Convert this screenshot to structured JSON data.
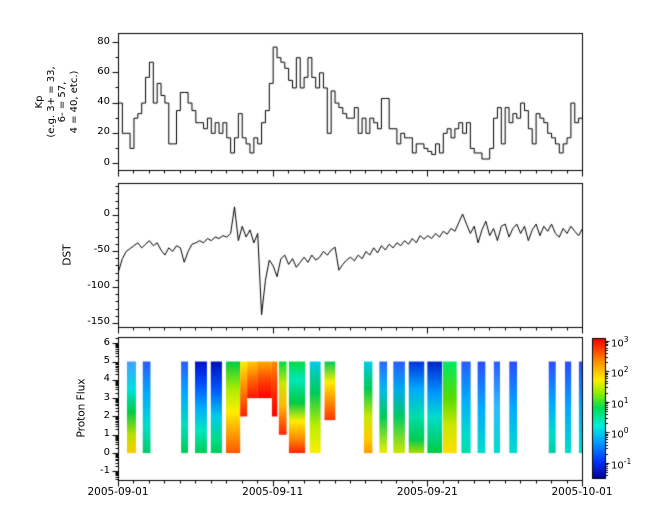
{
  "figure": {
    "background": "#ffffff",
    "axis_color": "#000000",
    "x_axis": {
      "range_days": [
        0,
        30
      ],
      "major_tick_days": [
        0,
        10,
        20,
        30
      ],
      "major_tick_labels": [
        "2005-09-01",
        "2005-09-11",
        "2005-09-21",
        "2005-10-01"
      ],
      "minor_tick_step_days": 1
    }
  },
  "chart_data": [
    {
      "id": "kp",
      "type": "line",
      "style": "step",
      "ylabel_lines": [
        "Kp",
        "(e.g. 3+ = 33,",
        "6- = 57,",
        "4 = 40, etc.)"
      ],
      "line_color": "#000000",
      "ylim": [
        -4.6,
        86
      ],
      "yticks": [
        0,
        20,
        40,
        60,
        80
      ],
      "ytick_labels": [
        "0",
        "20",
        "40",
        "60",
        "80"
      ],
      "y_minor_ticks": [
        10,
        30,
        50,
        70
      ],
      "x_start_day": 0,
      "x_step_days": 0.25,
      "values": [
        40,
        20,
        20,
        10,
        30,
        33,
        40,
        57,
        67,
        40,
        53,
        45,
        40,
        13,
        13,
        35,
        47,
        47,
        40,
        35,
        27,
        27,
        23,
        30,
        20,
        27,
        20,
        27,
        17,
        7,
        17,
        33,
        17,
        13,
        7,
        17,
        13,
        27,
        35,
        53,
        77,
        70,
        67,
        63,
        55,
        50,
        70,
        50,
        57,
        70,
        57,
        50,
        60,
        50,
        20,
        48,
        40,
        37,
        33,
        30,
        30,
        37,
        20,
        30,
        20,
        30,
        27,
        23,
        43,
        43,
        23,
        23,
        13,
        20,
        17,
        17,
        7,
        13,
        13,
        10,
        8,
        6,
        13,
        7,
        20,
        23,
        17,
        23,
        27,
        20,
        27,
        10,
        7,
        7,
        3,
        3,
        10,
        30,
        37,
        13,
        37,
        27,
        33,
        30,
        40,
        35,
        23,
        13,
        33,
        30,
        27,
        20,
        17,
        13,
        7,
        13,
        17,
        40,
        27,
        30
      ]
    },
    {
      "id": "dst",
      "type": "line",
      "style": "line",
      "ylabel": "DST",
      "line_color": "#000000",
      "ylim": [
        -155.6,
        44.4
      ],
      "yticks": [
        0,
        -50,
        -100,
        -150
      ],
      "ytick_labels": [
        "0",
        "-50",
        "-100",
        "-150"
      ],
      "y_minor_ticks": [
        40,
        30,
        20,
        10,
        -10,
        -20,
        -30,
        -40,
        -60,
        -70,
        -80,
        -90,
        -110,
        -120,
        -130,
        -140
      ],
      "x_start_day": 0,
      "x_step_days": 0.25,
      "values": [
        -78,
        -60,
        -50,
        -46,
        -42,
        -38,
        -45,
        -40,
        -35,
        -42,
        -38,
        -48,
        -55,
        -45,
        -50,
        -42,
        -45,
        -65,
        -50,
        -40,
        -38,
        -35,
        -38,
        -32,
        -35,
        -30,
        -32,
        -28,
        -30,
        -25,
        12,
        -35,
        -15,
        -30,
        -20,
        -38,
        -25,
        -138,
        -90,
        -62,
        -70,
        -85,
        -60,
        -55,
        -68,
        -60,
        -72,
        -65,
        -58,
        -65,
        -55,
        -62,
        -58,
        -50,
        -55,
        -48,
        -44,
        -76,
        -68,
        -62,
        -58,
        -63,
        -55,
        -60,
        -50,
        -55,
        -45,
        -52,
        -42,
        -48,
        -40,
        -45,
        -38,
        -42,
        -35,
        -40,
        -32,
        -38,
        -28,
        -33,
        -28,
        -32,
        -25,
        -30,
        -22,
        -26,
        -18,
        -22,
        -10,
        2,
        -12,
        -25,
        -15,
        -38,
        -20,
        -8,
        -28,
        -18,
        -35,
        -15,
        -12,
        -30,
        -18,
        -12,
        -25,
        -15,
        -35,
        -20,
        -12,
        -28,
        -15,
        -22,
        -12,
        -25,
        -30,
        -18,
        -25,
        -15,
        -22,
        -28,
        -18
      ]
    },
    {
      "id": "proton_flux",
      "type": "heatmap",
      "ylabel": "Proton Flux",
      "ylim": [
        -1.47,
        6.34
      ],
      "yticks": [
        -1,
        0,
        1,
        2,
        3,
        4,
        5,
        6
      ],
      "ytick_labels": [
        "-1",
        "0",
        "1",
        "2",
        "3",
        "4",
        "5",
        "6"
      ],
      "y_scale": "log_decades",
      "stripe_y_top": 5,
      "stripes": [
        {
          "day_start": 0.58,
          "day_end": 1.16,
          "y_bottom": 0,
          "stops": [
            [
              0,
              "#44a0ff"
            ],
            [
              0.3,
              "#00e0e0"
            ],
            [
              0.55,
              "#00cc44"
            ],
            [
              0.8,
              "#bbdd00"
            ],
            [
              1,
              "#ffcc00"
            ]
          ]
        },
        {
          "day_start": 1.6,
          "day_end": 2.1,
          "y_bottom": 0,
          "stops": [
            [
              0,
              "#2a5cff"
            ],
            [
              0.35,
              "#00aaff"
            ],
            [
              0.7,
              "#00ddcc"
            ],
            [
              1,
              "#00cc66"
            ]
          ]
        },
        {
          "day_start": 4.08,
          "day_end": 4.53,
          "y_bottom": 0,
          "stops": [
            [
              0,
              "#2a5cff"
            ],
            [
              0.35,
              "#00aaff"
            ],
            [
              0.7,
              "#00ddbb"
            ],
            [
              1,
              "#00cc55"
            ]
          ]
        },
        {
          "day_start": 4.98,
          "day_end": 5.75,
          "y_bottom": 0,
          "stops": [
            [
              0,
              "#0010cc"
            ],
            [
              0.25,
              "#0050ff"
            ],
            [
              0.5,
              "#00aaff"
            ],
            [
              0.75,
              "#00e8c0"
            ],
            [
              1,
              "#00cc55"
            ]
          ]
        },
        {
          "day_start": 6.0,
          "day_end": 6.72,
          "y_bottom": 0,
          "stops": [
            [
              0,
              "#0010bb"
            ],
            [
              0.3,
              "#0055ff"
            ],
            [
              0.6,
              "#00cce8"
            ],
            [
              0.85,
              "#00dd88"
            ],
            [
              1,
              "#00cc55"
            ]
          ]
        },
        {
          "day_start": 6.98,
          "day_end": 7.9,
          "y_bottom": 0,
          "stops": [
            [
              0,
              "#00cc44"
            ],
            [
              0.3,
              "#aaee00"
            ],
            [
              0.55,
              "#ffee00"
            ],
            [
              0.8,
              "#ff9900"
            ],
            [
              1,
              "#ff5500"
            ]
          ]
        },
        {
          "day_start": 7.9,
          "day_end": 8.35,
          "y_bottom": 2,
          "stops": [
            [
              0,
              "#ffee00"
            ],
            [
              0.4,
              "#ff9900"
            ],
            [
              1,
              "#ff2200"
            ]
          ]
        },
        {
          "day_start": 8.35,
          "day_end": 9.0,
          "y_bottom": 3,
          "stops": [
            [
              0,
              "#ffcc00"
            ],
            [
              0.5,
              "#ff6600"
            ],
            [
              1,
              "#ff1100"
            ]
          ]
        },
        {
          "day_start": 9.0,
          "day_end": 9.95,
          "y_bottom": 3,
          "stops": [
            [
              0,
              "#ffaa00"
            ],
            [
              0.5,
              "#ff4400"
            ],
            [
              1,
              "#ff0000"
            ]
          ]
        },
        {
          "day_start": 9.95,
          "day_end": 10.3,
          "y_bottom": 2,
          "stops": [
            [
              0,
              "#ff8800"
            ],
            [
              0.5,
              "#ff3300"
            ],
            [
              1,
              "#ff0000"
            ]
          ]
        },
        {
          "day_start": 10.4,
          "day_end": 10.9,
          "y_bottom": 1,
          "stops": [
            [
              0,
              "#00dd44"
            ],
            [
              0.3,
              "#cce800"
            ],
            [
              0.6,
              "#ffbb00"
            ],
            [
              1,
              "#ff2200"
            ]
          ]
        },
        {
          "day_start": 11.05,
          "day_end": 12.1,
          "y_bottom": 0,
          "stops": [
            [
              0,
              "#00dd44"
            ],
            [
              0.2,
              "#00e8b8"
            ],
            [
              0.45,
              "#00cc44"
            ],
            [
              0.65,
              "#ffee00"
            ],
            [
              0.85,
              "#ff8800"
            ],
            [
              1,
              "#ff2200"
            ]
          ]
        },
        {
          "day_start": 12.4,
          "day_end": 13.1,
          "y_bottom": 0,
          "stops": [
            [
              0,
              "#00cce8"
            ],
            [
              0.35,
              "#00cc55"
            ],
            [
              0.7,
              "#bbee00"
            ],
            [
              1,
              "#ffee00"
            ]
          ]
        },
        {
          "day_start": 13.35,
          "day_end": 14.05,
          "y_bottom": 1.8,
          "stops": [
            [
              0,
              "#00cc55"
            ],
            [
              0.35,
              "#ffee00"
            ],
            [
              0.7,
              "#ff8800"
            ],
            [
              1,
              "#ff3300"
            ]
          ]
        },
        {
          "day_start": 15.9,
          "day_end": 16.45,
          "y_bottom": 0,
          "stops": [
            [
              0,
              "#00cce8"
            ],
            [
              0.3,
              "#00cc55"
            ],
            [
              0.6,
              "#cce800"
            ],
            [
              0.85,
              "#ffcc00"
            ],
            [
              1,
              "#ff9900"
            ]
          ]
        },
        {
          "day_start": 16.9,
          "day_end": 17.4,
          "y_bottom": 0,
          "stops": [
            [
              0,
              "#2a66ff"
            ],
            [
              0.3,
              "#00bbee"
            ],
            [
              0.6,
              "#00cc55"
            ],
            [
              1,
              "#eeee00"
            ]
          ]
        },
        {
          "day_start": 17.8,
          "day_end": 18.55,
          "y_bottom": 0,
          "stops": [
            [
              0,
              "#2a5cff"
            ],
            [
              0.3,
              "#00aaee"
            ],
            [
              0.6,
              "#00cc66"
            ],
            [
              1,
              "#cce800"
            ]
          ]
        },
        {
          "day_start": 18.8,
          "day_end": 19.8,
          "y_bottom": 0,
          "stops": [
            [
              0,
              "#0033dd"
            ],
            [
              0.3,
              "#00aaff"
            ],
            [
              0.6,
              "#00ddaa"
            ],
            [
              0.85,
              "#00cc55"
            ],
            [
              1,
              "#aadd00"
            ]
          ]
        },
        {
          "day_start": 20.0,
          "day_end": 20.95,
          "y_bottom": 0,
          "stops": [
            [
              0,
              "#0022cc"
            ],
            [
              0.35,
              "#0099ff"
            ],
            [
              0.6,
              "#00ddcc"
            ],
            [
              1,
              "#00cc44"
            ]
          ]
        },
        {
          "day_start": 21.0,
          "day_end": 21.9,
          "y_bottom": 0,
          "stops": [
            [
              0,
              "#00e866"
            ],
            [
              0.4,
              "#55dd00"
            ],
            [
              0.7,
              "#cce800"
            ],
            [
              1,
              "#ffdd00"
            ]
          ]
        },
        {
          "day_start": 22.2,
          "day_end": 22.8,
          "y_bottom": 0,
          "stops": [
            [
              0,
              "#2a5cff"
            ],
            [
              0.4,
              "#00aaff"
            ],
            [
              0.8,
              "#00ddcc"
            ],
            [
              1,
              "#00ddaa"
            ]
          ]
        },
        {
          "day_start": 23.25,
          "day_end": 23.75,
          "y_bottom": 0,
          "stops": [
            [
              0,
              "#2a4cff"
            ],
            [
              0.5,
              "#00aaff"
            ],
            [
              1,
              "#00ddcc"
            ]
          ]
        },
        {
          "day_start": 24.3,
          "day_end": 24.7,
          "y_bottom": 0,
          "stops": [
            [
              0,
              "#2a5cff"
            ],
            [
              0.5,
              "#33bbff"
            ],
            [
              1,
              "#00ddcc"
            ]
          ]
        },
        {
          "day_start": 25.3,
          "day_end": 25.8,
          "y_bottom": 0,
          "stops": [
            [
              0,
              "#2a4cff"
            ],
            [
              0.5,
              "#00aaff"
            ],
            [
              1,
              "#00ddcc"
            ]
          ]
        },
        {
          "day_start": 27.85,
          "day_end": 28.3,
          "y_bottom": 0,
          "stops": [
            [
              0,
              "#2a4cff"
            ],
            [
              0.45,
              "#00aaff"
            ],
            [
              0.8,
              "#00ddcc"
            ],
            [
              1,
              "#00ccaa"
            ]
          ]
        },
        {
          "day_start": 28.9,
          "day_end": 29.3,
          "y_bottom": 0,
          "stops": [
            [
              0,
              "#2a4cff"
            ],
            [
              0.5,
              "#00aaff"
            ],
            [
              1,
              "#00ddcc"
            ]
          ]
        },
        {
          "day_start": 29.8,
          "day_end": 30.0,
          "y_bottom": 0,
          "stops": [
            [
              0,
              "#2a4cff"
            ],
            [
              0.5,
              "#00aaff"
            ],
            [
              1,
              "#00ddcc"
            ]
          ]
        }
      ],
      "colorbar": {
        "scale": "log",
        "range_log10": [
          -1.49,
          3.09
        ],
        "tick_exponents": [
          3,
          2,
          1,
          0,
          -1
        ],
        "tick_base": "10",
        "colors_bottom_to_top": [
          [
            0,
            "#000099"
          ],
          [
            0.12,
            "#0033ff"
          ],
          [
            0.25,
            "#0099ff"
          ],
          [
            0.37,
            "#00eedd"
          ],
          [
            0.5,
            "#00dd55"
          ],
          [
            0.6,
            "#88ee00"
          ],
          [
            0.7,
            "#ffee00"
          ],
          [
            0.82,
            "#ff9900"
          ],
          [
            0.93,
            "#ff3300"
          ],
          [
            1,
            "#ee0000"
          ]
        ]
      }
    }
  ]
}
